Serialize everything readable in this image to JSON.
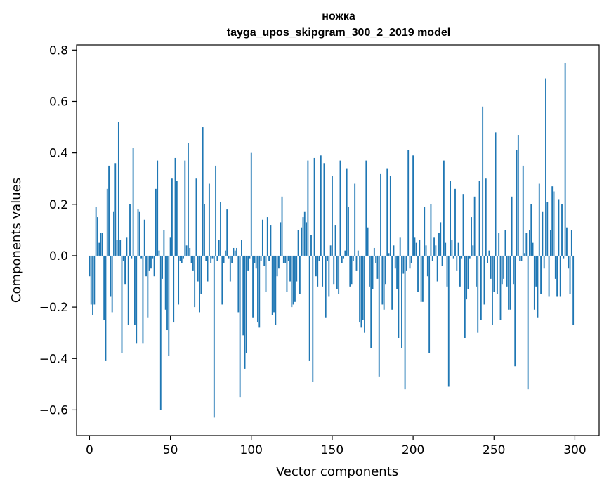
{
  "chart_data": {
    "type": "bar",
    "title": "ножка",
    "subtitle": "tayga_upos_skipgram_300_2_2019 model",
    "xlabel": "Vector components",
    "ylabel": "Components values",
    "xlim": [
      -8,
      315
    ],
    "ylim": [
      -0.7,
      0.82
    ],
    "xticks": [
      0,
      50,
      100,
      150,
      200,
      250,
      300
    ],
    "xtick_labels": [
      "0",
      "50",
      "100",
      "150",
      "200",
      "250",
      "300"
    ],
    "yticks": [
      -0.6,
      -0.4,
      -0.2,
      0.0,
      0.2,
      0.4,
      0.6,
      0.8
    ],
    "ytick_labels": [
      "−0.6",
      "−0.4",
      "−0.2",
      "0.0",
      "0.2",
      "0.4",
      "0.6",
      "0.8"
    ],
    "grid": false,
    "color": "#1f77b4",
    "x": [
      0,
      1,
      2,
      3,
      4,
      5,
      6,
      7,
      8,
      9,
      10,
      11,
      12,
      13,
      14,
      15,
      16,
      17,
      18,
      19,
      20,
      21,
      22,
      23,
      24,
      25,
      26,
      27,
      28,
      29,
      30,
      31,
      32,
      33,
      34,
      35,
      36,
      37,
      38,
      39,
      40,
      41,
      42,
      43,
      44,
      45,
      46,
      47,
      48,
      49,
      50,
      51,
      52,
      53,
      54,
      55,
      56,
      57,
      58,
      59,
      60,
      61,
      62,
      63,
      64,
      65,
      66,
      67,
      68,
      69,
      70,
      71,
      72,
      73,
      74,
      75,
      76,
      77,
      78,
      79,
      80,
      81,
      82,
      83,
      84,
      85,
      86,
      87,
      88,
      89,
      90,
      91,
      92,
      93,
      94,
      95,
      96,
      97,
      98,
      99,
      100,
      101,
      102,
      103,
      104,
      105,
      106,
      107,
      108,
      109,
      110,
      111,
      112,
      113,
      114,
      115,
      116,
      117,
      118,
      119,
      120,
      121,
      122,
      123,
      124,
      125,
      126,
      127,
      128,
      129,
      130,
      131,
      132,
      133,
      134,
      135,
      136,
      137,
      138,
      139,
      140,
      141,
      142,
      143,
      144,
      145,
      146,
      147,
      148,
      149,
      150,
      151,
      152,
      153,
      154,
      155,
      156,
      157,
      158,
      159,
      160,
      161,
      162,
      163,
      164,
      165,
      166,
      167,
      168,
      169,
      170,
      171,
      172,
      173,
      174,
      175,
      176,
      177,
      178,
      179,
      180,
      181,
      182,
      183,
      184,
      185,
      186,
      187,
      188,
      189,
      190,
      191,
      192,
      193,
      194,
      195,
      196,
      197,
      198,
      199,
      200,
      201,
      202,
      203,
      204,
      205,
      206,
      207,
      208,
      209,
      210,
      211,
      212,
      213,
      214,
      215,
      216,
      217,
      218,
      219,
      220,
      221,
      222,
      223,
      224,
      225,
      226,
      227,
      228,
      229,
      230,
      231,
      232,
      233,
      234,
      235,
      236,
      237,
      238,
      239,
      240,
      241,
      242,
      243,
      244,
      245,
      246,
      247,
      248,
      249,
      250,
      251,
      252,
      253,
      254,
      255,
      256,
      257,
      258,
      259,
      260,
      261,
      262,
      263,
      264,
      265,
      266,
      267,
      268,
      269,
      270,
      271,
      272,
      273,
      274,
      275,
      276,
      277,
      278,
      279,
      280,
      281,
      282,
      283,
      284,
      285,
      286,
      287,
      288,
      289,
      290,
      291,
      292,
      293,
      294,
      295,
      296,
      297,
      298,
      299
    ],
    "values": [
      -0.08,
      -0.19,
      -0.23,
      -0.19,
      0.19,
      0.15,
      0.05,
      0.09,
      0.09,
      -0.25,
      -0.41,
      0.26,
      0.35,
      -0.16,
      -0.22,
      0.17,
      0.36,
      0.06,
      0.52,
      0.06,
      -0.38,
      -0.02,
      -0.11,
      0.07,
      -0.27,
      0.2,
      -0.01,
      0.42,
      -0.27,
      -0.34,
      0.18,
      0.17,
      -0.01,
      -0.34,
      0.14,
      -0.08,
      -0.24,
      -0.06,
      -0.05,
      -0.01,
      -0.08,
      0.26,
      0.37,
      0.02,
      -0.6,
      -0.09,
      0.1,
      -0.21,
      -0.29,
      -0.39,
      0.07,
      0.3,
      -0.26,
      0.38,
      0.29,
      -0.19,
      -0.02,
      -0.03,
      -0.01,
      0.37,
      0.04,
      0.44,
      0.03,
      -0.03,
      -0.06,
      -0.2,
      0.3,
      -0.1,
      -0.22,
      -0.15,
      0.5,
      0.2,
      -0.02,
      -0.1,
      0.28,
      -0.03,
      -0.01,
      -0.63,
      0.35,
      -0.02,
      0.06,
      0.21,
      -0.19,
      -0.03,
      0.02,
      0.18,
      -0.01,
      -0.1,
      -0.03,
      0.03,
      0.02,
      0.03,
      -0.22,
      -0.55,
      0.06,
      -0.31,
      -0.44,
      -0.38,
      -0.06,
      -0.01,
      0.4,
      -0.24,
      -0.03,
      -0.05,
      -0.26,
      -0.28,
      -0.02,
      0.14,
      -0.04,
      -0.14,
      0.15,
      -0.02,
      0.12,
      -0.23,
      -0.22,
      -0.27,
      -0.08,
      -0.05,
      0.13,
      0.23,
      -0.03,
      -0.03,
      -0.14,
      -0.02,
      -0.1,
      -0.2,
      -0.19,
      -0.18,
      -0.1,
      0.1,
      -0.15,
      0.11,
      0.15,
      0.17,
      0.13,
      0.37,
      -0.41,
      0.08,
      -0.49,
      0.38,
      -0.08,
      -0.12,
      -0.02,
      0.39,
      -0.12,
      0.36,
      -0.24,
      -0.02,
      -0.16,
      0.04,
      0.31,
      -0.11,
      0.12,
      -0.13,
      -0.15,
      0.37,
      -0.03,
      -0.01,
      0.02,
      0.34,
      0.19,
      -0.12,
      -0.11,
      -0.02,
      0.28,
      -0.06,
      0.02,
      -0.26,
      -0.28,
      -0.25,
      -0.3,
      0.37,
      0.11,
      -0.12,
      -0.36,
      -0.13,
      0.03,
      -0.03,
      -0.09,
      -0.47,
      0.32,
      -0.19,
      -0.21,
      -0.11,
      0.34,
      0.01,
      0.31,
      -0.21,
      0.04,
      -0.05,
      -0.13,
      -0.32,
      0.07,
      -0.36,
      -0.07,
      -0.52,
      -0.06,
      0.41,
      -0.05,
      -0.03,
      0.39,
      0.07,
      0.05,
      -0.14,
      0.06,
      -0.18,
      -0.18,
      0.19,
      0.04,
      -0.08,
      -0.38,
      0.2,
      -0.02,
      0.07,
      0.04,
      -0.1,
      0.09,
      0.13,
      -0.04,
      0.37,
      0.05,
      -0.12,
      -0.51,
      0.29,
      0.06,
      -0.01,
      0.26,
      -0.06,
      0.05,
      -0.12,
      -0.01,
      0.24,
      -0.32,
      -0.17,
      -0.13,
      -0.01,
      0.15,
      0.04,
      0.23,
      -0.12,
      -0.3,
      0.29,
      -0.25,
      0.58,
      -0.19,
      0.3,
      -0.03,
      0.02,
      -0.09,
      -0.27,
      -0.14,
      0.48,
      -0.15,
      0.09,
      -0.25,
      -0.11,
      -0.09,
      0.1,
      -0.12,
      -0.21,
      -0.21,
      0.23,
      -0.11,
      -0.43,
      0.41,
      0.47,
      -0.02,
      -0.02,
      0.35,
      0.01,
      0.09,
      -0.52,
      0.1,
      0.2,
      0.05,
      -0.21,
      -0.12,
      -0.24,
      0.28,
      -0.15,
      0.17,
      -0.05,
      0.69,
      0.21,
      -0.16,
      0.1,
      0.27,
      0.25,
      -0.09,
      -0.16,
      0.22,
      -0.16,
      0.2,
      -0.01,
      0.75,
      0.11,
      -0.05,
      -0.15,
      0.1,
      -0.27
    ]
  }
}
